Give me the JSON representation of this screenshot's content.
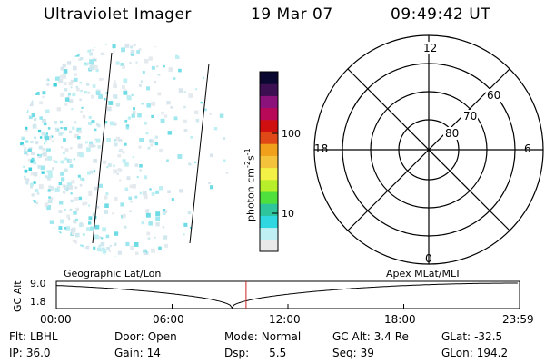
{
  "header": {
    "title": "Ultraviolet Imager",
    "date": "19 Mar 07",
    "time": "09:49:42 UT"
  },
  "colorbar": {
    "unit_label": "photon cm",
    "unit_sup1": "-2",
    "unit_mid": "s",
    "unit_sup2": "-1",
    "ticks": [
      "100",
      "10"
    ],
    "colors": [
      "#e9e9e9",
      "#bfeff2",
      "#2fd7e0",
      "#2ec59c",
      "#4fe03e",
      "#b7ef2a",
      "#f3f046",
      "#f4c23b",
      "#f0a01a",
      "#e04818",
      "#d01010",
      "#b80858",
      "#8a127a",
      "#3b0f52",
      "#0a0830"
    ]
  },
  "polar": {
    "mlt_labels": {
      "top": "12",
      "bottom": "0",
      "left": "18",
      "right": "6"
    },
    "lat_labels": [
      "60",
      "70",
      "80"
    ]
  },
  "track": {
    "y_axis_label": "GC Alt",
    "y_ticks": [
      "9.0",
      "1.8"
    ],
    "left_title": "Geographic Lat/Lon",
    "right_title": "Apex MLat/MLT",
    "x_ticks": [
      "00:00",
      "06:00",
      "12:00",
      "18:00",
      "23:59"
    ],
    "current_time_hours": 9.83,
    "marker_color": "#cc2222"
  },
  "footer": {
    "row1": [
      {
        "label": "Flt:",
        "value": "LBHL"
      },
      {
        "label": "Door:",
        "value": "Open"
      },
      {
        "label": "Mode:",
        "value": "Normal"
      },
      {
        "label": "GC Alt:",
        "value": "3.4 Re"
      },
      {
        "label": "GLat:",
        "value": "-32.5"
      }
    ],
    "row2": [
      {
        "label": "IP:",
        "value": "36.0"
      },
      {
        "label": "Gain:",
        "value": "14"
      },
      {
        "label": "Dsp:",
        "value": "5.5"
      },
      {
        "label": "Seq:",
        "value": "39"
      },
      {
        "label": "GLon:",
        "value": "194.2"
      }
    ]
  }
}
